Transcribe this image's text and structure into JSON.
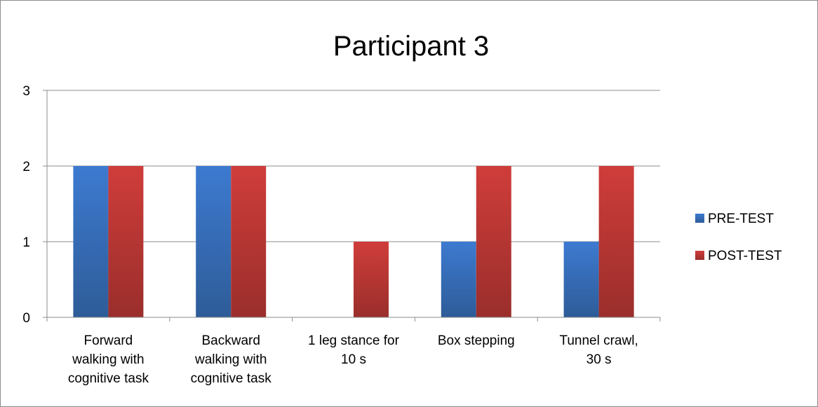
{
  "chart_data": {
    "type": "bar",
    "title": "Participant 3",
    "categories": [
      [
        "Forward",
        "walking with",
        "cognitive task"
      ],
      [
        "Backward",
        "walking with",
        "cognitive task"
      ],
      [
        "1 leg stance for",
        "10 s"
      ],
      [
        "Box stepping"
      ],
      [
        "Tunnel crawl,",
        "30 s"
      ]
    ],
    "series": [
      {
        "name": "PRE-TEST",
        "values": [
          2,
          2,
          0,
          1,
          1
        ],
        "color": "#4a7ebb"
      },
      {
        "name": "POST-TEST",
        "values": [
          2,
          2,
          1,
          2,
          2
        ],
        "color": "#be4b48"
      }
    ],
    "ylim": [
      0,
      3
    ],
    "yticks": [
      "0",
      "1",
      "2",
      "3"
    ],
    "grid": true,
    "legend_position": "right"
  }
}
